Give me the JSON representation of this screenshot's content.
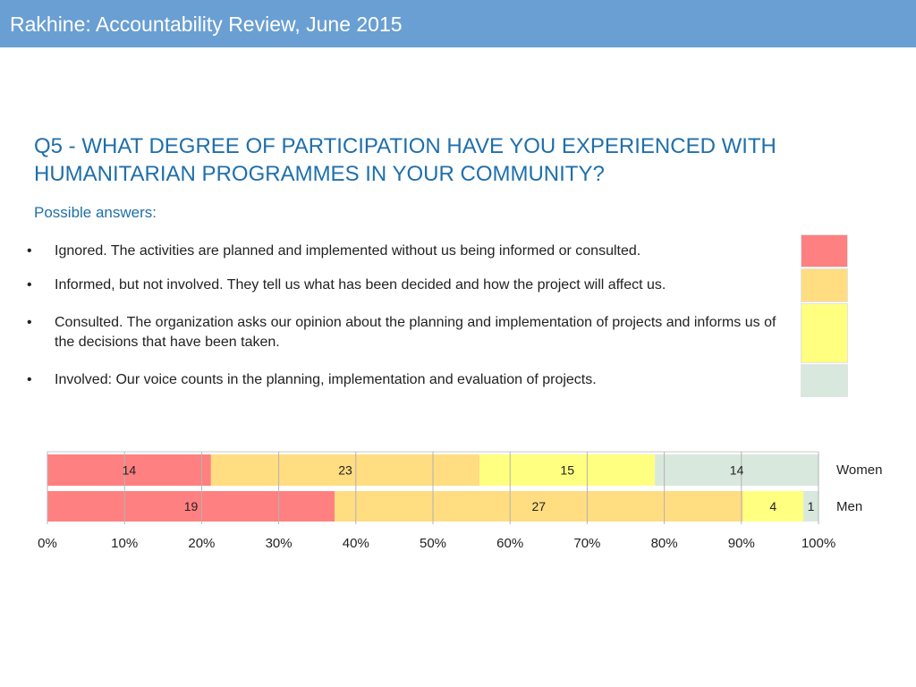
{
  "header": {
    "title": "Rakhine: Accountability Review, June 2015"
  },
  "question": {
    "line1": "Q5 - WHAT DEGREE OF PARTICIPATION HAVE YOU EXPERIENCED WITH",
    "line2": "HUMANITARIAN PROGRAMMES IN YOUR COMMUNITY?"
  },
  "possible_label": "Possible answers:",
  "bullet_glyph": "•",
  "answers": [
    {
      "text": "Ignored. The activities are planned and implemented without us being informed or consulted.",
      "color": "#ff8080"
    },
    {
      "text": "Informed, but not involved. They tell us what has been decided and how the project will affect us.",
      "color": "#ffdd80"
    },
    {
      "text": "Consulted. The organization asks our opinion about the planning and implementation of projects and informs us of the decisions that have been taken.",
      "color": "#ffff80"
    },
    {
      "text": "Involved: Our voice counts in the planning, implementation and evaluation of projects.",
      "color": "#d8e8dd"
    }
  ],
  "chart_data": {
    "type": "bar",
    "orientation": "horizontal",
    "stacked": "percent",
    "categories": [
      "Women",
      "Men"
    ],
    "series": [
      {
        "values": [
          14,
          19
        ],
        "labels": [
          "14",
          "19"
        ],
        "color": "#ff8080"
      },
      {
        "values": [
          23,
          27
        ],
        "labels": [
          "23",
          "27"
        ],
        "color": "#ffdd80"
      },
      {
        "values": [
          15,
          4
        ],
        "labels": [
          "15",
          "4"
        ],
        "color": "#ffff80"
      },
      {
        "values": [
          14,
          1
        ],
        "labels": [
          "14",
          "1"
        ],
        "color": "#d8e8dd"
      }
    ],
    "xticks": [
      "0%",
      "10%",
      "20%",
      "30%",
      "40%",
      "50%",
      "60%",
      "70%",
      "80%",
      "90%",
      "100%"
    ],
    "xlim": [
      0,
      100
    ],
    "grid": true,
    "legend": "none"
  }
}
